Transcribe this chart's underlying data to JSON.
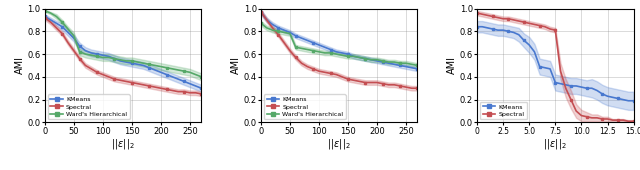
{
  "panel1": {
    "title": "",
    "xlabel": "||e||_2",
    "ylabel": "AMI",
    "xlim": [
      0,
      270
    ],
    "ylim": [
      0.0,
      1.0
    ],
    "xticks": [
      0,
      50,
      100,
      150,
      200,
      250
    ],
    "yticks": [
      0.0,
      0.2,
      0.4,
      0.6,
      0.8,
      1.0
    ],
    "kmeans_x": [
      0,
      10,
      20,
      30,
      40,
      50,
      60,
      70,
      80,
      90,
      100,
      110,
      120,
      130,
      140,
      150,
      160,
      170,
      180,
      190,
      200,
      210,
      220,
      230,
      240,
      250,
      260,
      270
    ],
    "kmeans_y": [
      0.93,
      0.9,
      0.87,
      0.84,
      0.79,
      0.74,
      0.67,
      0.63,
      0.61,
      0.6,
      0.59,
      0.58,
      0.56,
      0.54,
      0.53,
      0.52,
      0.51,
      0.5,
      0.48,
      0.46,
      0.44,
      0.42,
      0.4,
      0.38,
      0.36,
      0.34,
      0.32,
      0.3
    ],
    "kmeans_lo": [
      0.91,
      0.88,
      0.85,
      0.81,
      0.76,
      0.71,
      0.64,
      0.6,
      0.58,
      0.57,
      0.56,
      0.55,
      0.53,
      0.51,
      0.5,
      0.49,
      0.48,
      0.47,
      0.45,
      0.43,
      0.41,
      0.39,
      0.37,
      0.35,
      0.33,
      0.31,
      0.29,
      0.27
    ],
    "kmeans_hi": [
      0.95,
      0.92,
      0.89,
      0.87,
      0.82,
      0.77,
      0.7,
      0.66,
      0.64,
      0.63,
      0.62,
      0.61,
      0.59,
      0.57,
      0.56,
      0.55,
      0.54,
      0.53,
      0.51,
      0.49,
      0.47,
      0.45,
      0.43,
      0.41,
      0.39,
      0.37,
      0.35,
      0.33
    ],
    "spectral_x": [
      0,
      10,
      20,
      30,
      40,
      50,
      60,
      70,
      80,
      90,
      100,
      110,
      120,
      130,
      140,
      150,
      160,
      170,
      180,
      190,
      200,
      210,
      220,
      230,
      240,
      250,
      260,
      270
    ],
    "spectral_y": [
      0.92,
      0.88,
      0.83,
      0.78,
      0.7,
      0.63,
      0.56,
      0.5,
      0.47,
      0.44,
      0.42,
      0.4,
      0.38,
      0.37,
      0.36,
      0.35,
      0.34,
      0.33,
      0.32,
      0.31,
      0.3,
      0.29,
      0.28,
      0.27,
      0.27,
      0.26,
      0.26,
      0.25
    ],
    "spectral_lo": [
      0.9,
      0.86,
      0.81,
      0.76,
      0.68,
      0.61,
      0.54,
      0.48,
      0.45,
      0.42,
      0.4,
      0.38,
      0.36,
      0.35,
      0.34,
      0.33,
      0.32,
      0.31,
      0.3,
      0.29,
      0.28,
      0.27,
      0.26,
      0.25,
      0.25,
      0.24,
      0.24,
      0.23
    ],
    "spectral_hi": [
      0.94,
      0.9,
      0.85,
      0.8,
      0.72,
      0.65,
      0.58,
      0.52,
      0.49,
      0.46,
      0.44,
      0.42,
      0.4,
      0.39,
      0.38,
      0.37,
      0.36,
      0.35,
      0.34,
      0.33,
      0.32,
      0.31,
      0.3,
      0.29,
      0.29,
      0.28,
      0.28,
      0.27
    ],
    "ward_x": [
      0,
      10,
      20,
      30,
      40,
      50,
      60,
      70,
      80,
      90,
      100,
      110,
      120,
      130,
      140,
      150,
      160,
      170,
      180,
      190,
      200,
      210,
      220,
      230,
      240,
      250,
      260,
      270
    ],
    "ward_y": [
      0.98,
      0.96,
      0.93,
      0.88,
      0.82,
      0.76,
      0.62,
      0.6,
      0.59,
      0.58,
      0.57,
      0.57,
      0.56,
      0.55,
      0.54,
      0.54,
      0.53,
      0.52,
      0.51,
      0.5,
      0.49,
      0.48,
      0.47,
      0.46,
      0.45,
      0.44,
      0.42,
      0.4
    ],
    "ward_lo": [
      0.97,
      0.95,
      0.91,
      0.86,
      0.8,
      0.73,
      0.59,
      0.57,
      0.56,
      0.55,
      0.54,
      0.54,
      0.53,
      0.52,
      0.51,
      0.51,
      0.5,
      0.49,
      0.48,
      0.47,
      0.46,
      0.45,
      0.44,
      0.43,
      0.42,
      0.41,
      0.39,
      0.37
    ],
    "ward_hi": [
      0.99,
      0.97,
      0.95,
      0.9,
      0.84,
      0.79,
      0.65,
      0.63,
      0.62,
      0.61,
      0.6,
      0.6,
      0.59,
      0.58,
      0.57,
      0.57,
      0.56,
      0.55,
      0.54,
      0.53,
      0.52,
      0.51,
      0.5,
      0.49,
      0.48,
      0.47,
      0.45,
      0.43
    ]
  },
  "panel2": {
    "xlabel": "||e||_2",
    "ylabel": "AMI",
    "xlim": [
      0,
      270
    ],
    "ylim": [
      0.0,
      1.0
    ],
    "xticks": [
      0,
      50,
      100,
      150,
      200,
      250
    ],
    "yticks": [
      0.0,
      0.2,
      0.4,
      0.6,
      0.8,
      1.0
    ],
    "kmeans_x": [
      0,
      10,
      20,
      30,
      40,
      50,
      60,
      70,
      80,
      90,
      100,
      110,
      120,
      130,
      140,
      150,
      160,
      170,
      180,
      190,
      200,
      210,
      220,
      230,
      240,
      250,
      260,
      270
    ],
    "kmeans_y": [
      0.97,
      0.9,
      0.86,
      0.83,
      0.81,
      0.79,
      0.76,
      0.74,
      0.72,
      0.7,
      0.68,
      0.66,
      0.64,
      0.62,
      0.61,
      0.6,
      0.58,
      0.57,
      0.56,
      0.55,
      0.54,
      0.53,
      0.52,
      0.51,
      0.5,
      0.49,
      0.48,
      0.47
    ],
    "kmeans_lo": [
      0.95,
      0.88,
      0.84,
      0.81,
      0.79,
      0.77,
      0.74,
      0.72,
      0.7,
      0.68,
      0.66,
      0.64,
      0.62,
      0.6,
      0.59,
      0.58,
      0.56,
      0.55,
      0.54,
      0.53,
      0.52,
      0.51,
      0.5,
      0.49,
      0.48,
      0.47,
      0.46,
      0.45
    ],
    "kmeans_hi": [
      0.99,
      0.92,
      0.88,
      0.85,
      0.83,
      0.81,
      0.78,
      0.76,
      0.74,
      0.72,
      0.7,
      0.68,
      0.66,
      0.64,
      0.63,
      0.62,
      0.6,
      0.59,
      0.58,
      0.57,
      0.56,
      0.55,
      0.54,
      0.53,
      0.52,
      0.51,
      0.5,
      0.49
    ],
    "spectral_x": [
      0,
      10,
      20,
      30,
      40,
      50,
      60,
      70,
      80,
      90,
      100,
      110,
      120,
      130,
      140,
      150,
      160,
      170,
      180,
      190,
      200,
      210,
      220,
      230,
      240,
      250,
      260,
      270
    ],
    "spectral_y": [
      0.97,
      0.9,
      0.83,
      0.77,
      0.7,
      0.63,
      0.57,
      0.52,
      0.49,
      0.47,
      0.45,
      0.44,
      0.43,
      0.42,
      0.4,
      0.38,
      0.37,
      0.36,
      0.35,
      0.35,
      0.35,
      0.34,
      0.33,
      0.33,
      0.32,
      0.31,
      0.3,
      0.3
    ],
    "spectral_lo": [
      0.95,
      0.88,
      0.81,
      0.75,
      0.68,
      0.61,
      0.55,
      0.5,
      0.47,
      0.45,
      0.43,
      0.42,
      0.41,
      0.4,
      0.38,
      0.36,
      0.35,
      0.34,
      0.33,
      0.33,
      0.33,
      0.32,
      0.31,
      0.31,
      0.3,
      0.29,
      0.28,
      0.28
    ],
    "spectral_hi": [
      0.99,
      0.92,
      0.85,
      0.79,
      0.72,
      0.65,
      0.59,
      0.54,
      0.51,
      0.49,
      0.47,
      0.46,
      0.45,
      0.44,
      0.42,
      0.4,
      0.39,
      0.38,
      0.37,
      0.37,
      0.37,
      0.36,
      0.35,
      0.35,
      0.34,
      0.33,
      0.32,
      0.32
    ],
    "ward_x": [
      0,
      10,
      20,
      30,
      40,
      50,
      60,
      70,
      80,
      90,
      100,
      110,
      120,
      130,
      140,
      150,
      160,
      170,
      180,
      190,
      200,
      210,
      220,
      230,
      240,
      250,
      260,
      270
    ],
    "ward_y": [
      0.87,
      0.83,
      0.81,
      0.8,
      0.79,
      0.78,
      0.66,
      0.65,
      0.64,
      0.63,
      0.62,
      0.61,
      0.61,
      0.6,
      0.59,
      0.58,
      0.58,
      0.57,
      0.56,
      0.55,
      0.55,
      0.54,
      0.53,
      0.53,
      0.52,
      0.52,
      0.51,
      0.5
    ],
    "ward_lo": [
      0.85,
      0.81,
      0.79,
      0.78,
      0.77,
      0.76,
      0.64,
      0.63,
      0.62,
      0.61,
      0.6,
      0.59,
      0.59,
      0.58,
      0.57,
      0.56,
      0.56,
      0.55,
      0.54,
      0.53,
      0.53,
      0.52,
      0.51,
      0.51,
      0.5,
      0.5,
      0.49,
      0.48
    ],
    "ward_hi": [
      0.89,
      0.85,
      0.83,
      0.82,
      0.81,
      0.8,
      0.68,
      0.67,
      0.66,
      0.65,
      0.64,
      0.63,
      0.63,
      0.62,
      0.61,
      0.6,
      0.6,
      0.59,
      0.58,
      0.57,
      0.57,
      0.56,
      0.55,
      0.55,
      0.54,
      0.54,
      0.53,
      0.52
    ]
  },
  "panel3": {
    "xlabel": "||e||_2",
    "ylabel": "AMI",
    "xlim": [
      0,
      15
    ],
    "ylim": [
      0.0,
      1.0
    ],
    "xticks": [
      0,
      2.5,
      5.0,
      7.5,
      10.0,
      12.5,
      15.0
    ],
    "yticks": [
      0.0,
      0.2,
      0.4,
      0.6,
      0.8,
      1.0
    ],
    "kmeans_x": [
      0,
      0.5,
      1.0,
      1.5,
      2.0,
      2.5,
      3.0,
      3.5,
      4.0,
      4.5,
      5.0,
      5.5,
      6.0,
      6.5,
      7.0,
      7.5,
      8.0,
      8.5,
      9.0,
      9.5,
      10.0,
      10.5,
      11.0,
      11.5,
      12.0,
      12.5,
      13.0,
      13.5,
      14.0,
      14.5,
      15.0
    ],
    "kmeans_y": [
      0.84,
      0.84,
      0.83,
      0.82,
      0.81,
      0.81,
      0.8,
      0.79,
      0.77,
      0.72,
      0.68,
      0.62,
      0.49,
      0.48,
      0.47,
      0.35,
      0.34,
      0.33,
      0.32,
      0.32,
      0.31,
      0.3,
      0.3,
      0.28,
      0.25,
      0.23,
      0.22,
      0.21,
      0.2,
      0.19,
      0.19
    ],
    "kmeans_lo": [
      0.79,
      0.79,
      0.78,
      0.77,
      0.76,
      0.76,
      0.75,
      0.74,
      0.71,
      0.66,
      0.61,
      0.55,
      0.42,
      0.41,
      0.4,
      0.28,
      0.27,
      0.26,
      0.25,
      0.25,
      0.24,
      0.23,
      0.22,
      0.2,
      0.17,
      0.15,
      0.14,
      0.13,
      0.12,
      0.11,
      0.11
    ],
    "kmeans_hi": [
      0.89,
      0.89,
      0.88,
      0.87,
      0.86,
      0.86,
      0.85,
      0.84,
      0.83,
      0.78,
      0.75,
      0.69,
      0.56,
      0.55,
      0.54,
      0.42,
      0.41,
      0.4,
      0.39,
      0.39,
      0.38,
      0.37,
      0.38,
      0.36,
      0.33,
      0.31,
      0.3,
      0.29,
      0.28,
      0.27,
      0.27
    ],
    "spectral_x": [
      0,
      0.5,
      1.0,
      1.5,
      2.0,
      2.5,
      3.0,
      3.5,
      4.0,
      4.5,
      5.0,
      5.5,
      6.0,
      6.5,
      7.0,
      7.5,
      8.0,
      8.5,
      9.0,
      9.5,
      10.0,
      10.5,
      11.0,
      11.5,
      12.0,
      12.5,
      13.0,
      13.5,
      14.0,
      14.5,
      15.0
    ],
    "spectral_y": [
      0.96,
      0.95,
      0.94,
      0.93,
      0.92,
      0.91,
      0.91,
      0.9,
      0.89,
      0.88,
      0.87,
      0.86,
      0.85,
      0.84,
      0.82,
      0.81,
      0.45,
      0.3,
      0.2,
      0.1,
      0.06,
      0.05,
      0.04,
      0.04,
      0.03,
      0.03,
      0.02,
      0.02,
      0.02,
      0.01,
      0.01
    ],
    "spectral_lo": [
      0.94,
      0.93,
      0.92,
      0.91,
      0.9,
      0.89,
      0.89,
      0.88,
      0.87,
      0.86,
      0.85,
      0.84,
      0.83,
      0.82,
      0.8,
      0.79,
      0.38,
      0.22,
      0.12,
      0.04,
      0.01,
      0.01,
      0.01,
      0.01,
      0.01,
      0.01,
      0.01,
      0.01,
      0.01,
      0.0,
      0.0
    ],
    "spectral_hi": [
      0.98,
      0.97,
      0.96,
      0.95,
      0.94,
      0.93,
      0.93,
      0.92,
      0.91,
      0.9,
      0.89,
      0.88,
      0.87,
      0.86,
      0.84,
      0.83,
      0.52,
      0.38,
      0.28,
      0.16,
      0.11,
      0.09,
      0.07,
      0.07,
      0.05,
      0.05,
      0.03,
      0.03,
      0.03,
      0.02,
      0.02
    ]
  },
  "colors": {
    "kmeans": "#4878CF",
    "spectral": "#C44E52",
    "ward": "#55A868"
  },
  "alpha_fill": 0.25
}
